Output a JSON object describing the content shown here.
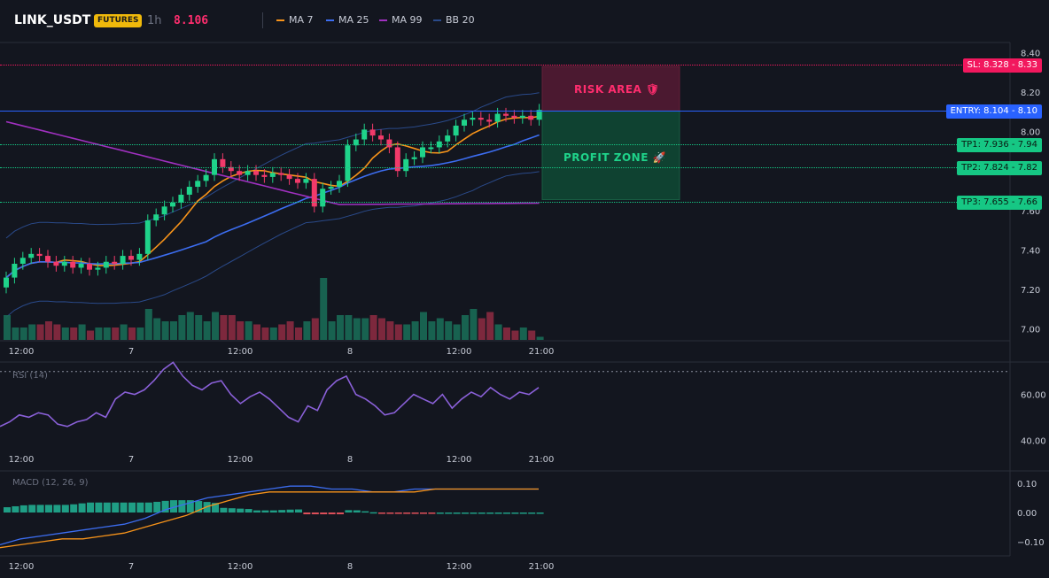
{
  "header": {
    "symbol": "LINK_USDT",
    "badge": "FUTURES",
    "timeframe": "1h",
    "price": "8.106",
    "legend": [
      {
        "label": "MA 7",
        "color": "#f7931a"
      },
      {
        "label": "MA 25",
        "color": "#3c6df0"
      },
      {
        "label": "MA 99",
        "color": "#a030c0"
      },
      {
        "label": "BB 20",
        "color": "#2a4a8a"
      }
    ]
  },
  "levels": {
    "sl": "SL: 8.328 - 8.33",
    "entry": "ENTRY: 8.104 - 8.10",
    "tp1": "TP1: 7.936 - 7.94",
    "tp2": "TP2: 7.824 - 7.82",
    "tp3": "TP3: 7.655 - 7.66"
  },
  "zones": {
    "risk": "RISK AREA",
    "profit": "PROFIT ZONE",
    "risk_icon": "shield-icon",
    "profit_icon": "rocket-icon"
  },
  "colors": {
    "up": "#1fd38a",
    "down": "#f23a6a",
    "risk_fill": "#5a1a35",
    "profit_fill": "#0f4a35",
    "sl": "#f2185e",
    "entry": "#2962ff",
    "tp": "#16c784"
  },
  "x_axis": [
    "12:00",
    "7",
    "12:00",
    "8",
    "12:00",
    "21:00"
  ],
  "price_axis": [
    "8.40",
    "8.20",
    "8.00",
    "7.80",
    "7.60",
    "7.40",
    "7.20",
    "7.00"
  ],
  "rsi": {
    "title": "RSI (14)",
    "axis": [
      "60.00",
      "40.00"
    ]
  },
  "macd": {
    "title": "MACD (12, 26, 9)",
    "axis": [
      "0.10",
      "0.00",
      "−0.10"
    ]
  },
  "chart_data": {
    "type": "candlestick",
    "ylim": [
      6.98,
      8.42
    ],
    "x_ticks": [
      "12:00",
      "7",
      "12:00",
      "8",
      "12:00",
      "21:00"
    ],
    "candles_close": [
      7.26,
      7.33,
      7.36,
      7.38,
      7.37,
      7.34,
      7.32,
      7.34,
      7.31,
      7.33,
      7.3,
      7.31,
      7.34,
      7.33,
      7.37,
      7.35,
      7.38,
      7.55,
      7.58,
      7.62,
      7.64,
      7.68,
      7.72,
      7.75,
      7.78,
      7.86,
      7.82,
      7.8,
      7.78,
      7.8,
      7.78,
      7.77,
      7.79,
      7.78,
      7.76,
      7.74,
      7.76,
      7.62,
      7.71,
      7.72,
      7.75,
      7.93,
      7.96,
      8.01,
      7.98,
      7.96,
      7.92,
      7.8,
      7.86,
      7.87,
      7.92,
      7.92,
      7.95,
      7.98,
      8.03,
      8.06,
      8.07,
      8.06,
      8.05,
      8.09,
      8.08,
      8.07,
      8.08,
      8.06,
      8.11
    ],
    "volume": [
      0.8,
      0.4,
      0.4,
      0.5,
      0.5,
      0.6,
      0.5,
      0.4,
      0.4,
      0.5,
      0.3,
      0.4,
      0.4,
      0.4,
      0.5,
      0.4,
      0.4,
      1.0,
      0.7,
      0.6,
      0.6,
      0.8,
      0.9,
      0.8,
      0.6,
      0.9,
      0.8,
      0.8,
      0.6,
      0.6,
      0.5,
      0.4,
      0.4,
      0.5,
      0.6,
      0.4,
      0.6,
      0.7,
      2.0,
      0.6,
      0.8,
      0.8,
      0.7,
      0.7,
      0.8,
      0.7,
      0.6,
      0.5,
      0.5,
      0.6,
      0.9,
      0.6,
      0.7,
      0.6,
      0.5,
      0.8,
      1.0,
      0.7,
      0.9,
      0.5,
      0.4,
      0.3,
      0.4,
      0.3,
      0.1
    ],
    "rsi": [
      46,
      48,
      51,
      50,
      52,
      51,
      47,
      46,
      48,
      49,
      52,
      50,
      58,
      61,
      60,
      62,
      66,
      71,
      74,
      68,
      64,
      62,
      65,
      66,
      60,
      56,
      59,
      61,
      58,
      54,
      50,
      48,
      55,
      53,
      62,
      66,
      68,
      60,
      58,
      55,
      51,
      52,
      56,
      60,
      58,
      56,
      60,
      54,
      58,
      61,
      59,
      63,
      60,
      58,
      61,
      60,
      63
    ],
    "rsi_ylim": [
      37,
      73
    ],
    "macd": [
      -0.11,
      -0.09,
      -0.08,
      -0.07,
      -0.06,
      -0.05,
      -0.04,
      -0.02,
      0.01,
      0.03,
      0.05,
      0.06,
      0.07,
      0.08,
      0.09,
      0.09,
      0.08,
      0.08,
      0.07,
      0.07,
      0.08,
      0.08,
      0.08,
      0.08,
      0.08,
      0.08,
      0.08
    ],
    "macd_signal": [
      -0.12,
      -0.11,
      -0.1,
      -0.09,
      -0.09,
      -0.08,
      -0.07,
      -0.05,
      -0.03,
      -0.01,
      0.02,
      0.04,
      0.06,
      0.07,
      0.07,
      0.07,
      0.07,
      0.07,
      0.07,
      0.07,
      0.07,
      0.08,
      0.08,
      0.08,
      0.08,
      0.08,
      0.08
    ],
    "macd_ylim": [
      -0.13,
      0.13
    ]
  }
}
